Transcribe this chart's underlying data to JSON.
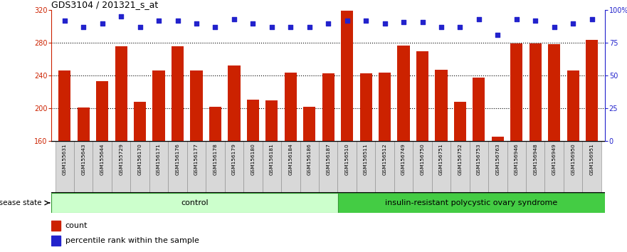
{
  "title": "GDS3104 / 201321_s_at",
  "samples": [
    "GSM155631",
    "GSM155643",
    "GSM155644",
    "GSM155729",
    "GSM156170",
    "GSM156171",
    "GSM156176",
    "GSM156177",
    "GSM156178",
    "GSM156179",
    "GSM156180",
    "GSM156181",
    "GSM156184",
    "GSM156186",
    "GSM156187",
    "GSM156510",
    "GSM156511",
    "GSM156512",
    "GSM156749",
    "GSM156750",
    "GSM156751",
    "GSM156752",
    "GSM156753",
    "GSM156763",
    "GSM156946",
    "GSM156948",
    "GSM156949",
    "GSM156950",
    "GSM156951"
  ],
  "counts": [
    246,
    201,
    233,
    276,
    208,
    246,
    276,
    246,
    202,
    252,
    211,
    210,
    244,
    202,
    243,
    319,
    243,
    244,
    277,
    270,
    247,
    208,
    238,
    165,
    279,
    279,
    278,
    246,
    284
  ],
  "percentile_ranks": [
    92,
    87,
    90,
    95,
    87,
    92,
    92,
    90,
    87,
    93,
    90,
    87,
    87,
    87,
    90,
    92,
    92,
    90,
    91,
    91,
    87,
    87,
    93,
    81,
    93,
    92,
    87,
    90,
    93
  ],
  "bar_color": "#cc2200",
  "dot_color": "#2222cc",
  "control_count": 15,
  "disease_count": 14,
  "group_label_control": "control",
  "group_label_disease": "insulin-resistant polycystic ovary syndrome",
  "group_color_control": "#ccffcc",
  "group_color_disease": "#44cc44",
  "disease_state_label": "disease state",
  "legend_count": "count",
  "legend_percentile": "percentile rank within the sample",
  "ylim_left": [
    160,
    320
  ],
  "ylim_right": [
    0,
    100
  ],
  "yticks_left": [
    160,
    200,
    240,
    280,
    320
  ],
  "yticks_right": [
    0,
    25,
    50,
    75,
    100
  ],
  "yticklabels_right": [
    "0",
    "25",
    "50",
    "75",
    "100%"
  ],
  "grid_lines": [
    200,
    240,
    280
  ],
  "tick_gray": "#c8c8c8",
  "border_color": "#888888"
}
